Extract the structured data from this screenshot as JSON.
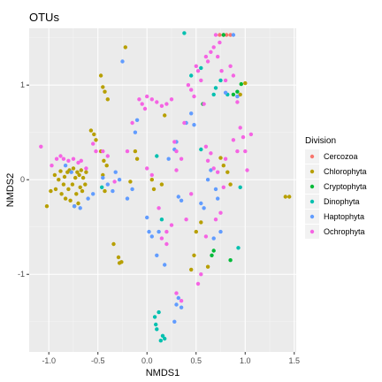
{
  "chart_data": {
    "type": "scatter",
    "title": "OTUs",
    "xlabel": "NMDS1",
    "ylabel": "NMDS2",
    "xlim": [
      -1.2,
      1.52
    ],
    "ylim": [
      -1.82,
      1.6
    ],
    "x_ticks": [
      -1.0,
      -0.5,
      0.0,
      0.5,
      1.0,
      1.5
    ],
    "x_tick_labels": [
      "-1.0",
      "-0.5",
      "0.0",
      "0.5",
      "1.0",
      "1.5"
    ],
    "y_ticks": [
      -1,
      0,
      1
    ],
    "y_tick_labels": [
      "-1",
      "0",
      "1"
    ],
    "grid": true,
    "legend_title": "Division",
    "legend_position": "right",
    "panel_background": "#ebebeb",
    "series": [
      {
        "name": "Cercozoa",
        "color": "#F8766D",
        "points": [
          [
            0.74,
            1.53
          ],
          [
            0.78,
            1.53
          ],
          [
            0.81,
            1.53
          ],
          [
            0.85,
            1.53
          ]
        ]
      },
      {
        "name": "Chlorophyta",
        "color": "#B79F00",
        "points": [
          [
            -1.02,
            -0.28
          ],
          [
            -0.98,
            -0.12
          ],
          [
            -0.94,
            0.05
          ],
          [
            -0.93,
            -0.1
          ],
          [
            -0.9,
            0.0
          ],
          [
            -0.88,
            0.09
          ],
          [
            -0.87,
            -0.15
          ],
          [
            -0.85,
            -0.05
          ],
          [
            -0.84,
            0.03
          ],
          [
            -0.83,
            -0.2
          ],
          [
            -0.81,
            0.08
          ],
          [
            -0.8,
            -0.1
          ],
          [
            -0.79,
            0.1
          ],
          [
            -0.78,
            -0.22
          ],
          [
            -0.76,
            -0.05
          ],
          [
            -0.75,
            0.12
          ],
          [
            -0.74,
            -0.28
          ],
          [
            -0.73,
            0.02
          ],
          [
            -0.72,
            -0.15
          ],
          [
            -0.71,
            0.08
          ],
          [
            -0.7,
            -0.25
          ],
          [
            -0.69,
            0.05
          ],
          [
            -0.68,
            -0.08
          ],
          [
            -0.67,
            0.1
          ],
          [
            -0.66,
            -0.12
          ],
          [
            -0.65,
            0.02
          ],
          [
            -0.63,
            -0.05
          ],
          [
            -0.62,
            0.08
          ],
          [
            -0.57,
            0.52
          ],
          [
            -0.54,
            0.48
          ],
          [
            -0.52,
            0.42
          ],
          [
            -0.47,
            0.3
          ],
          [
            -0.45,
            0.05
          ],
          [
            -0.44,
            0.2
          ],
          [
            -0.43,
            -0.12
          ],
          [
            -0.41,
            0.15
          ],
          [
            -0.47,
            1.1
          ],
          [
            -0.45,
            0.98
          ],
          [
            -0.43,
            0.93
          ],
          [
            -0.4,
            0.85
          ],
          [
            -0.34,
            -0.68
          ],
          [
            -0.29,
            -0.82
          ],
          [
            -0.28,
            -0.88
          ],
          [
            -0.26,
            -0.87
          ],
          [
            -0.17,
            -0.02
          ],
          [
            -0.22,
            1.4
          ],
          [
            -0.12,
            0.3
          ],
          [
            -0.1,
            0.22
          ],
          [
            0.05,
            0.0
          ],
          [
            0.07,
            -0.1
          ],
          [
            0.15,
            -0.05
          ],
          [
            0.45,
            -0.95
          ],
          [
            0.48,
            -0.8
          ],
          [
            0.5,
            -0.55
          ],
          [
            0.55,
            -0.45
          ],
          [
            0.62,
            -0.92
          ],
          [
            0.75,
            0.23
          ],
          [
            0.78,
            0.15
          ],
          [
            0.82,
            0.08
          ],
          [
            0.85,
            -0.05
          ],
          [
            0.95,
            0.9
          ],
          [
            1.0,
            1.02
          ],
          [
            1.41,
            -0.18
          ],
          [
            1.45,
            -0.18
          ],
          [
            0.18,
            0.68
          ]
        ]
      },
      {
        "name": "Cryptophyta",
        "color": "#00BA38",
        "points": [
          [
            0.57,
            0.8
          ],
          [
            0.66,
            -0.8
          ],
          [
            0.68,
            -0.75
          ],
          [
            0.78,
            1.53
          ],
          [
            0.88,
            0.9
          ],
          [
            0.92,
            0.93
          ],
          [
            0.96,
            1.01
          ],
          [
            0.85,
            -0.85
          ]
        ]
      },
      {
        "name": "Dinophyta",
        "color": "#00C0AF",
        "points": [
          [
            0.08,
            -1.45
          ],
          [
            0.09,
            -1.53
          ],
          [
            0.1,
            -1.58
          ],
          [
            0.12,
            -1.4
          ],
          [
            0.14,
            -1.7
          ],
          [
            0.16,
            -1.65
          ],
          [
            0.18,
            -1.68
          ],
          [
            0.38,
            1.55
          ],
          [
            0.45,
            1.1
          ],
          [
            0.55,
            1.18
          ],
          [
            0.68,
            0.9
          ],
          [
            0.7,
            0.97
          ],
          [
            0.75,
            1.05
          ],
          [
            0.82,
            0.9
          ],
          [
            0.93,
            -0.72
          ],
          [
            0.95,
            -0.08
          ],
          [
            0.55,
            0.32
          ],
          [
            -0.46,
            -0.08
          ],
          [
            0.1,
            0.25
          ],
          [
            0.15,
            -0.42
          ]
        ]
      },
      {
        "name": "Haptophyta",
        "color": "#619CFF",
        "points": [
          [
            -0.83,
            0.15
          ],
          [
            -0.77,
            0.08
          ],
          [
            -0.74,
            -0.28
          ],
          [
            -0.68,
            -0.3
          ],
          [
            -0.6,
            -0.2
          ],
          [
            -0.55,
            -0.15
          ],
          [
            -0.45,
            0.02
          ],
          [
            -0.4,
            -0.05
          ],
          [
            -0.35,
            -0.12
          ],
          [
            -0.32,
            0.08
          ],
          [
            -0.28,
            0.0
          ],
          [
            -0.2,
            -0.2
          ],
          [
            -0.15,
            -0.1
          ],
          [
            -0.12,
            0.5
          ],
          [
            -0.1,
            0.63
          ],
          [
            0.0,
            -0.4
          ],
          [
            0.02,
            -0.55
          ],
          [
            0.05,
            -0.6
          ],
          [
            0.1,
            -0.8
          ],
          [
            0.12,
            -0.55
          ],
          [
            0.18,
            -0.9
          ],
          [
            0.22,
            0.22
          ],
          [
            0.28,
            0.32
          ],
          [
            0.3,
            0.4
          ],
          [
            0.32,
            -0.18
          ],
          [
            0.35,
            -0.22
          ],
          [
            0.28,
            -1.5
          ],
          [
            0.3,
            -1.32
          ],
          [
            0.32,
            -1.25
          ],
          [
            0.35,
            -1.35
          ],
          [
            0.4,
            0.6
          ],
          [
            0.45,
            0.7
          ],
          [
            0.48,
            0.58
          ],
          [
            0.55,
            -0.25
          ],
          [
            0.58,
            -0.3
          ],
          [
            0.62,
            0.0
          ],
          [
            0.65,
            0.1
          ],
          [
            0.7,
            -0.1
          ],
          [
            0.72,
            -0.2
          ],
          [
            0.8,
            0.92
          ],
          [
            0.88,
            1.53
          ],
          [
            0.92,
            0.88
          ],
          [
            0.75,
            -0.55
          ],
          [
            0.68,
            -0.62
          ],
          [
            -0.25,
            1.25
          ]
        ]
      },
      {
        "name": "Ochrophyta",
        "color": "#F564E3",
        "points": [
          [
            -1.08,
            0.35
          ],
          [
            -0.97,
            0.15
          ],
          [
            -0.92,
            0.22
          ],
          [
            -0.88,
            0.25
          ],
          [
            -0.85,
            0.22
          ],
          [
            -0.8,
            0.2
          ],
          [
            -0.75,
            0.22
          ],
          [
            -0.7,
            0.18
          ],
          [
            -0.67,
            0.2
          ],
          [
            -0.62,
            0.12
          ],
          [
            -0.55,
            0.38
          ],
          [
            -0.52,
            0.3
          ],
          [
            -0.45,
            0.3
          ],
          [
            -0.4,
            0.25
          ],
          [
            -0.33,
            -0.02
          ],
          [
            -0.2,
            0.3
          ],
          [
            -0.15,
            0.6
          ],
          [
            -0.08,
            0.85
          ],
          [
            -0.05,
            0.8
          ],
          [
            -0.02,
            0.75
          ],
          [
            0.0,
            0.88
          ],
          [
            0.05,
            0.85
          ],
          [
            0.1,
            0.82
          ],
          [
            0.15,
            0.78
          ],
          [
            0.2,
            0.8
          ],
          [
            0.25,
            0.85
          ],
          [
            0.28,
            0.4
          ],
          [
            0.3,
            0.3
          ],
          [
            0.35,
            0.22
          ],
          [
            0.38,
            0.6
          ],
          [
            0.42,
            1.0
          ],
          [
            0.45,
            0.95
          ],
          [
            0.48,
            0.88
          ],
          [
            0.5,
            1.2
          ],
          [
            0.52,
            1.15
          ],
          [
            0.55,
            1.05
          ],
          [
            0.58,
            0.8
          ],
          [
            0.6,
            1.3
          ],
          [
            0.62,
            1.25
          ],
          [
            0.65,
            1.35
          ],
          [
            0.68,
            1.4
          ],
          [
            0.7,
            1.53
          ],
          [
            0.72,
            1.3
          ],
          [
            0.74,
            1.45
          ],
          [
            0.76,
            1.15
          ],
          [
            0.8,
            1.05
          ],
          [
            0.85,
            1.2
          ],
          [
            0.88,
            1.1
          ],
          [
            0.92,
            0.82
          ],
          [
            0.95,
            0.55
          ],
          [
            0.98,
            0.45
          ],
          [
            1.0,
            0.3
          ],
          [
            1.02,
            0.1
          ],
          [
            0.88,
            0.42
          ],
          [
            0.92,
            0.3
          ],
          [
            0.6,
            0.35
          ],
          [
            0.62,
            0.2
          ],
          [
            0.68,
            0.12
          ],
          [
            0.72,
            0.08
          ],
          [
            0.78,
            -0.08
          ],
          [
            0.75,
            -0.35
          ],
          [
            0.7,
            -0.42
          ],
          [
            0.6,
            -0.6
          ],
          [
            0.45,
            -0.15
          ],
          [
            0.4,
            -0.42
          ],
          [
            0.25,
            -0.48
          ],
          [
            0.2,
            -0.55
          ],
          [
            0.12,
            -0.3
          ],
          [
            0.05,
            0.05
          ],
          [
            0.0,
            0.12
          ],
          [
            0.15,
            -0.62
          ],
          [
            0.2,
            -0.68
          ],
          [
            0.3,
            -1.2
          ],
          [
            0.35,
            -1.28
          ],
          [
            0.55,
            -1.0
          ],
          [
            0.52,
            -1.1
          ],
          [
            0.65,
            0.28
          ],
          [
            0.8,
            0.22
          ],
          [
            0.3,
            0.1
          ],
          [
            1.06,
            0.48
          ]
        ]
      }
    ]
  }
}
